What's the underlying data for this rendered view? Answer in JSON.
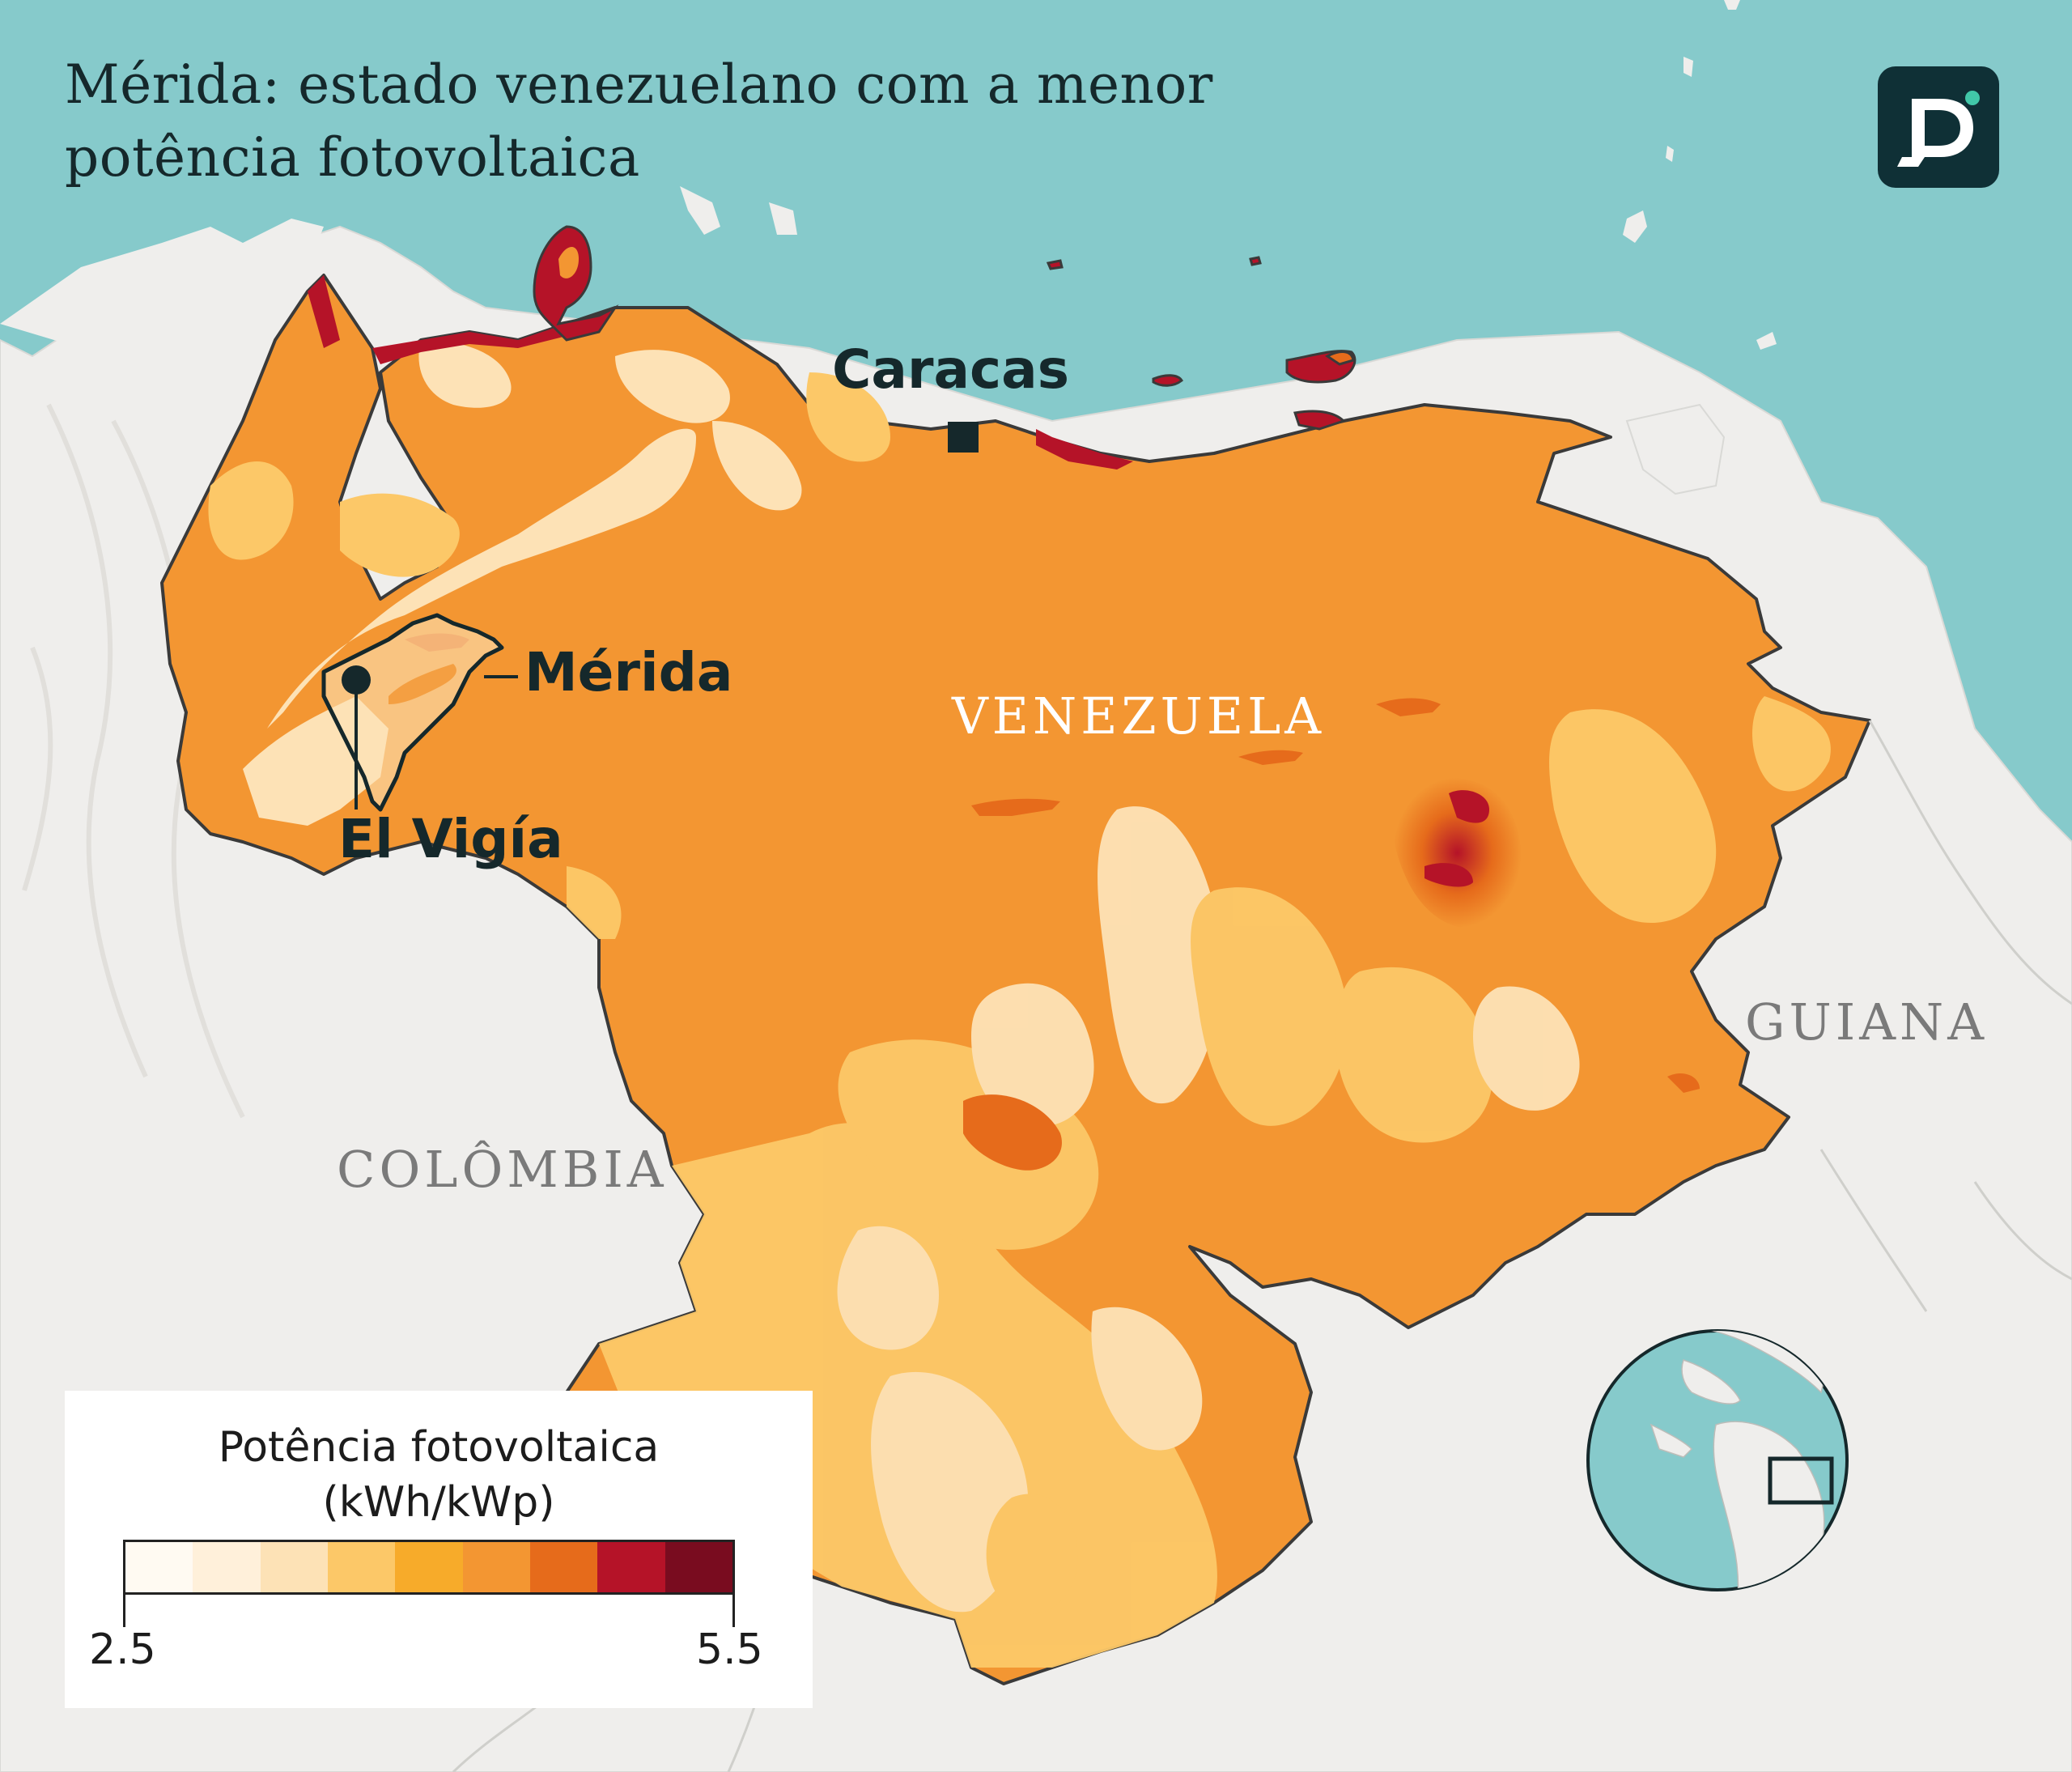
{
  "title": "Mérida: estado venezuelano com a menor potência fotovoltaica",
  "title_lines": [
    "Mérida: estado venezuelano com a menor",
    "potência fotovoltaica"
  ],
  "logo_letter": "D",
  "labels": {
    "caracas": "Caracas",
    "merida": "Mérida",
    "el_vigia": "El Vigía",
    "venezuela": "VENEZUELA",
    "colombia": "COLÔMBIA",
    "guiana": "GUIANA"
  },
  "legend": {
    "title_line1": "Potência fotovoltaica",
    "title_line2": "(kWh/kWp)",
    "min": "2.5",
    "max": "5.5",
    "colors": [
      "#fffaf2",
      "#fff0da",
      "#fde2b6",
      "#fcc868",
      "#f7ab2a",
      "#f39632",
      "#e66b1b",
      "#b51328",
      "#790c1f"
    ]
  },
  "colors": {
    "sea": "#86cacb",
    "land": "#efeeec",
    "country_text": "#7a7a7a",
    "venezuela_text": "#ffffff",
    "border": "#3a3a3a",
    "dark": "#15282b"
  }
}
